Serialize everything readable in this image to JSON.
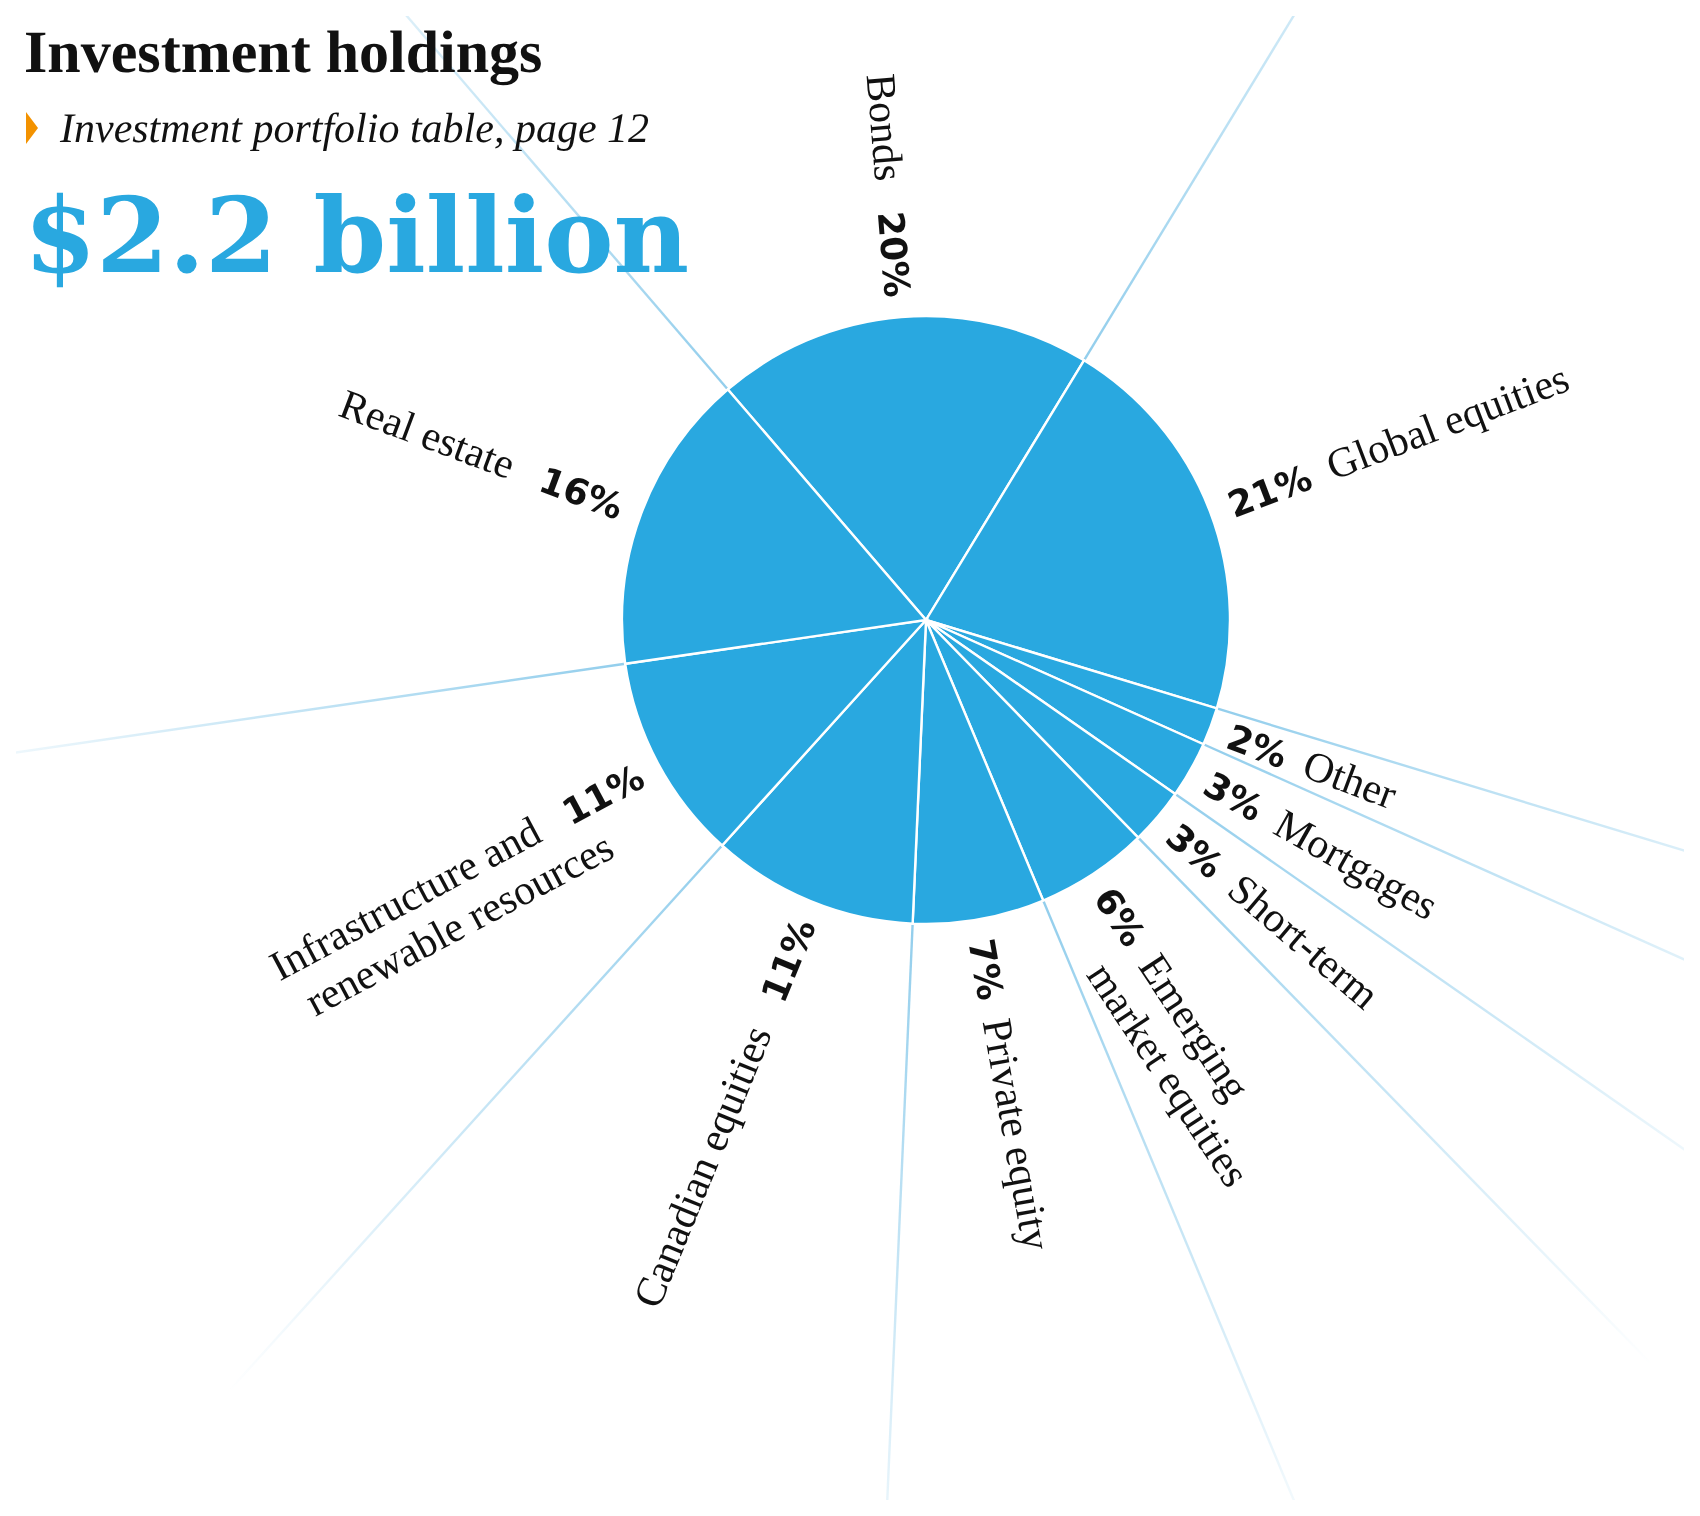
{
  "chart_data": {
    "type": "pie",
    "title": "Investment holdings",
    "subtitle": "Investment portfolio table, page 12",
    "annotations": [
      "$2.2 billion"
    ],
    "categories": [
      "Bonds",
      "Global equities",
      "Other",
      "Mortgages",
      "Short-term",
      "Emerging market equities",
      "Private equity",
      "Canadian equities",
      "Infrastructure and renewable resources",
      "Real estate"
    ],
    "values": [
      20,
      21,
      2,
      3,
      3,
      6,
      7,
      11,
      11,
      16
    ],
    "value_labels": [
      "20%",
      "21%",
      "2%",
      "3%",
      "3%",
      "6%",
      "7%",
      "11%",
      "11%",
      "16%"
    ],
    "colors": [
      "#29a8e0",
      "#29a8e0",
      "#29a8e0",
      "#29a8e0",
      "#29a8e0",
      "#29a8e0",
      "#29a8e0",
      "#29a8e0",
      "#29a8e0",
      "#29a8e0"
    ]
  }
}
